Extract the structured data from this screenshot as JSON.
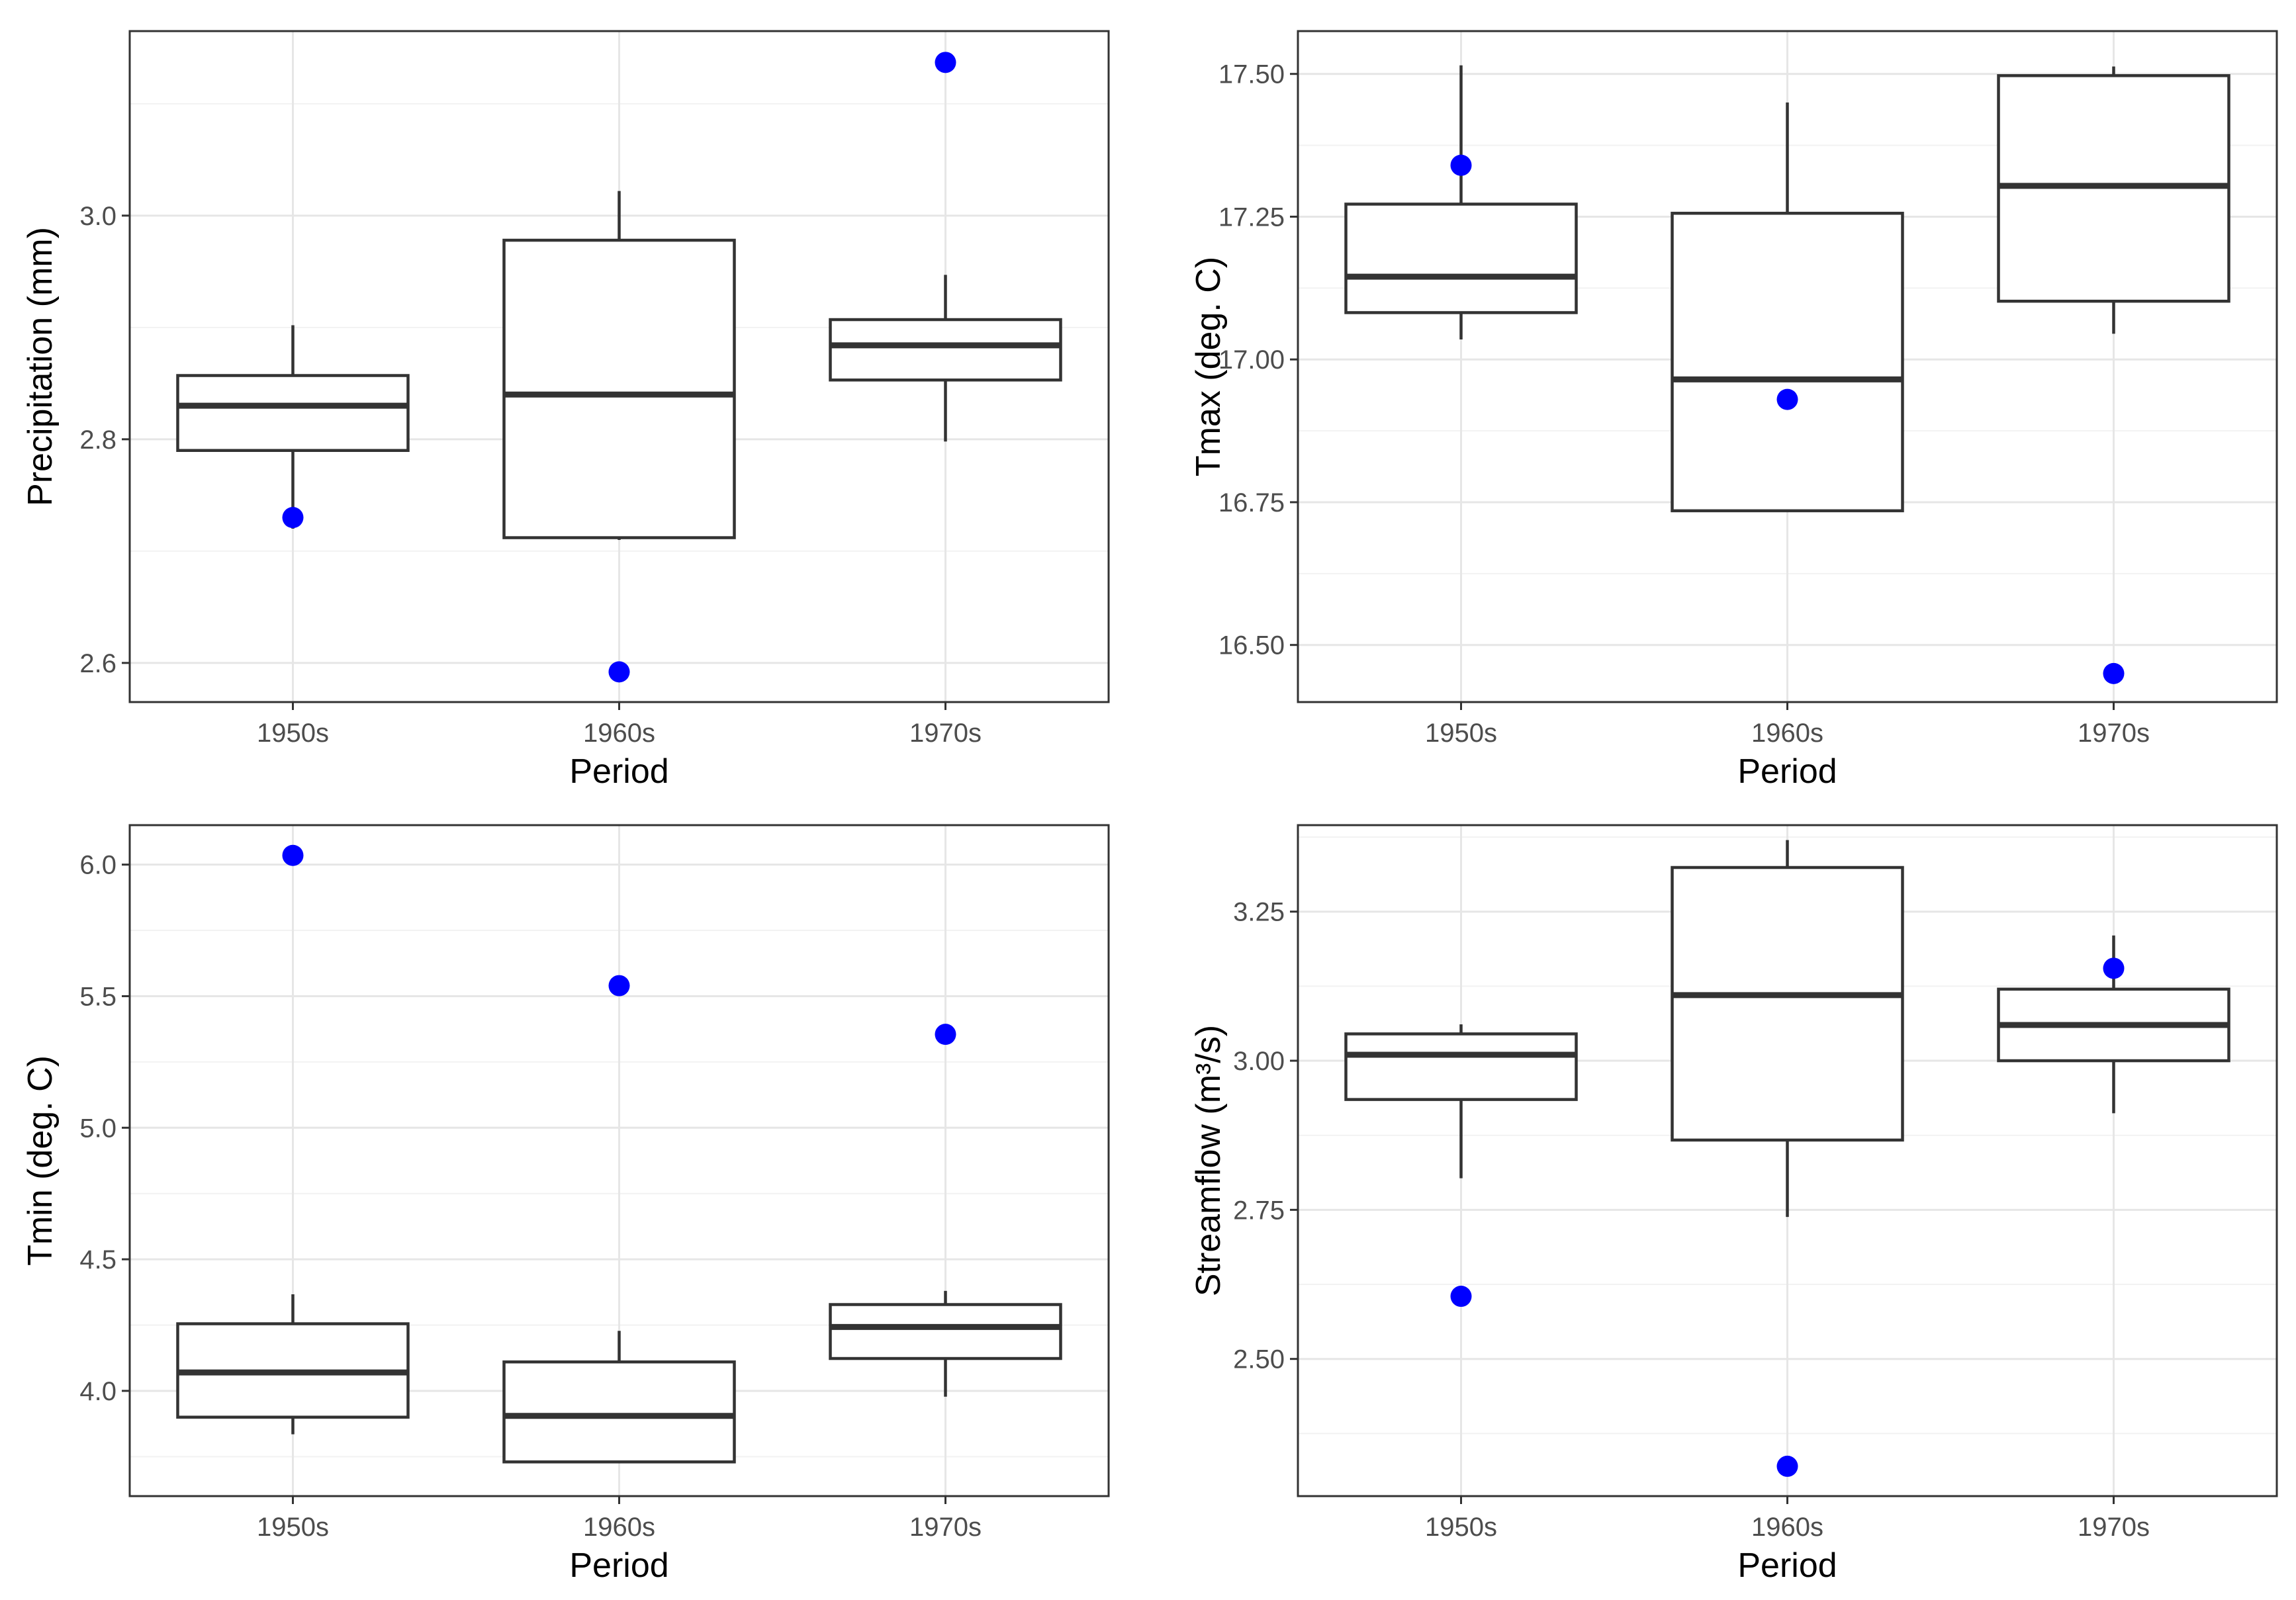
{
  "chart_data": [
    {
      "type": "box",
      "xlabel": "Period",
      "ylabel": "Precipitation (mm)",
      "categories": [
        "1950s",
        "1960s",
        "1970s"
      ],
      "ylim": [
        2.565,
        3.165
      ],
      "yticks": [
        2.6,
        2.8,
        3.0
      ],
      "ytick_labels": [
        "2.6",
        "2.8",
        "3.0"
      ],
      "grid": true,
      "boxes": [
        {
          "category": "1950s",
          "whisker_low": 2.72,
          "q1": 2.79,
          "median": 2.83,
          "q3": 2.857,
          "whisker_high": 2.902
        },
        {
          "category": "1960s",
          "whisker_low": 2.71,
          "q1": 2.712,
          "median": 2.84,
          "q3": 2.978,
          "whisker_high": 3.022
        },
        {
          "category": "1970s",
          "whisker_low": 2.798,
          "q1": 2.853,
          "median": 2.884,
          "q3": 2.907,
          "whisker_high": 2.947
        }
      ],
      "points": [
        {
          "category": "1950s",
          "value": 2.73
        },
        {
          "category": "1960s",
          "value": 2.592
        },
        {
          "category": "1970s",
          "value": 3.137
        }
      ],
      "point_color": "#0000ff"
    },
    {
      "type": "box",
      "xlabel": "Period",
      "ylabel": "Tmax (deg. C)",
      "categories": [
        "1950s",
        "1960s",
        "1970s"
      ],
      "ylim": [
        16.4,
        17.575
      ],
      "yticks": [
        16.5,
        16.75,
        17.0,
        17.25,
        17.5
      ],
      "ytick_labels": [
        "16.50",
        "16.75",
        "17.00",
        "17.25",
        "17.50"
      ],
      "grid": true,
      "boxes": [
        {
          "category": "1950s",
          "whisker_low": 17.035,
          "q1": 17.082,
          "median": 17.145,
          "q3": 17.272,
          "whisker_high": 17.515
        },
        {
          "category": "1960s",
          "whisker_low": 16.735,
          "q1": 16.735,
          "median": 16.965,
          "q3": 17.256,
          "whisker_high": 17.45
        },
        {
          "category": "1970s",
          "whisker_low": 17.045,
          "q1": 17.102,
          "median": 17.304,
          "q3": 17.497,
          "whisker_high": 17.513
        }
      ],
      "points": [
        {
          "category": "1950s",
          "value": 17.34
        },
        {
          "category": "1960s",
          "value": 16.93
        },
        {
          "category": "1970s",
          "value": 16.45
        }
      ],
      "point_color": "#0000ff"
    },
    {
      "type": "box",
      "xlabel": "Period",
      "ylabel": "Tmin (deg. C)",
      "categories": [
        "1950s",
        "1960s",
        "1970s"
      ],
      "ylim": [
        3.6,
        6.15
      ],
      "yticks": [
        4.0,
        4.5,
        5.0,
        5.5,
        6.0
      ],
      "ytick_labels": [
        "4.0",
        "4.5",
        "5.0",
        "5.5",
        "6.0"
      ],
      "grid": true,
      "boxes": [
        {
          "category": "1950s",
          "whisker_low": 3.835,
          "q1": 3.9,
          "median": 4.07,
          "q3": 4.255,
          "whisker_high": 4.367
        },
        {
          "category": "1960s",
          "whisker_low": 3.73,
          "q1": 3.73,
          "median": 3.905,
          "q3": 4.11,
          "whisker_high": 4.228
        },
        {
          "category": "1970s",
          "whisker_low": 3.978,
          "q1": 4.123,
          "median": 4.243,
          "q3": 4.328,
          "whisker_high": 4.38
        }
      ],
      "points": [
        {
          "category": "1950s",
          "value": 6.035
        },
        {
          "category": "1960s",
          "value": 5.54
        },
        {
          "category": "1970s",
          "value": 5.355
        }
      ],
      "point_color": "#0000ff"
    },
    {
      "type": "box",
      "xlabel": "Period",
      "ylabel": "Streamflow (m³/s)",
      "categories": [
        "1950s",
        "1960s",
        "1970s"
      ],
      "ylim": [
        2.27,
        3.395
      ],
      "yticks": [
        2.5,
        2.75,
        3.0,
        3.25
      ],
      "ytick_labels": [
        "2.50",
        "2.75",
        "3.00",
        "3.25"
      ],
      "grid": true,
      "boxes": [
        {
          "category": "1950s",
          "whisker_low": 2.803,
          "q1": 2.935,
          "median": 3.01,
          "q3": 3.045,
          "whisker_high": 3.061
        },
        {
          "category": "1960s",
          "whisker_low": 2.738,
          "q1": 2.867,
          "median": 3.11,
          "q3": 3.324,
          "whisker_high": 3.37
        },
        {
          "category": "1970s",
          "whisker_low": 2.912,
          "q1": 3.0,
          "median": 3.06,
          "q3": 3.12,
          "whisker_high": 3.21
        }
      ],
      "points": [
        {
          "category": "1950s",
          "value": 2.605
        },
        {
          "category": "1960s",
          "value": 2.32
        },
        {
          "category": "1970s",
          "value": 3.155
        }
      ],
      "point_color": "#0000ff"
    }
  ]
}
